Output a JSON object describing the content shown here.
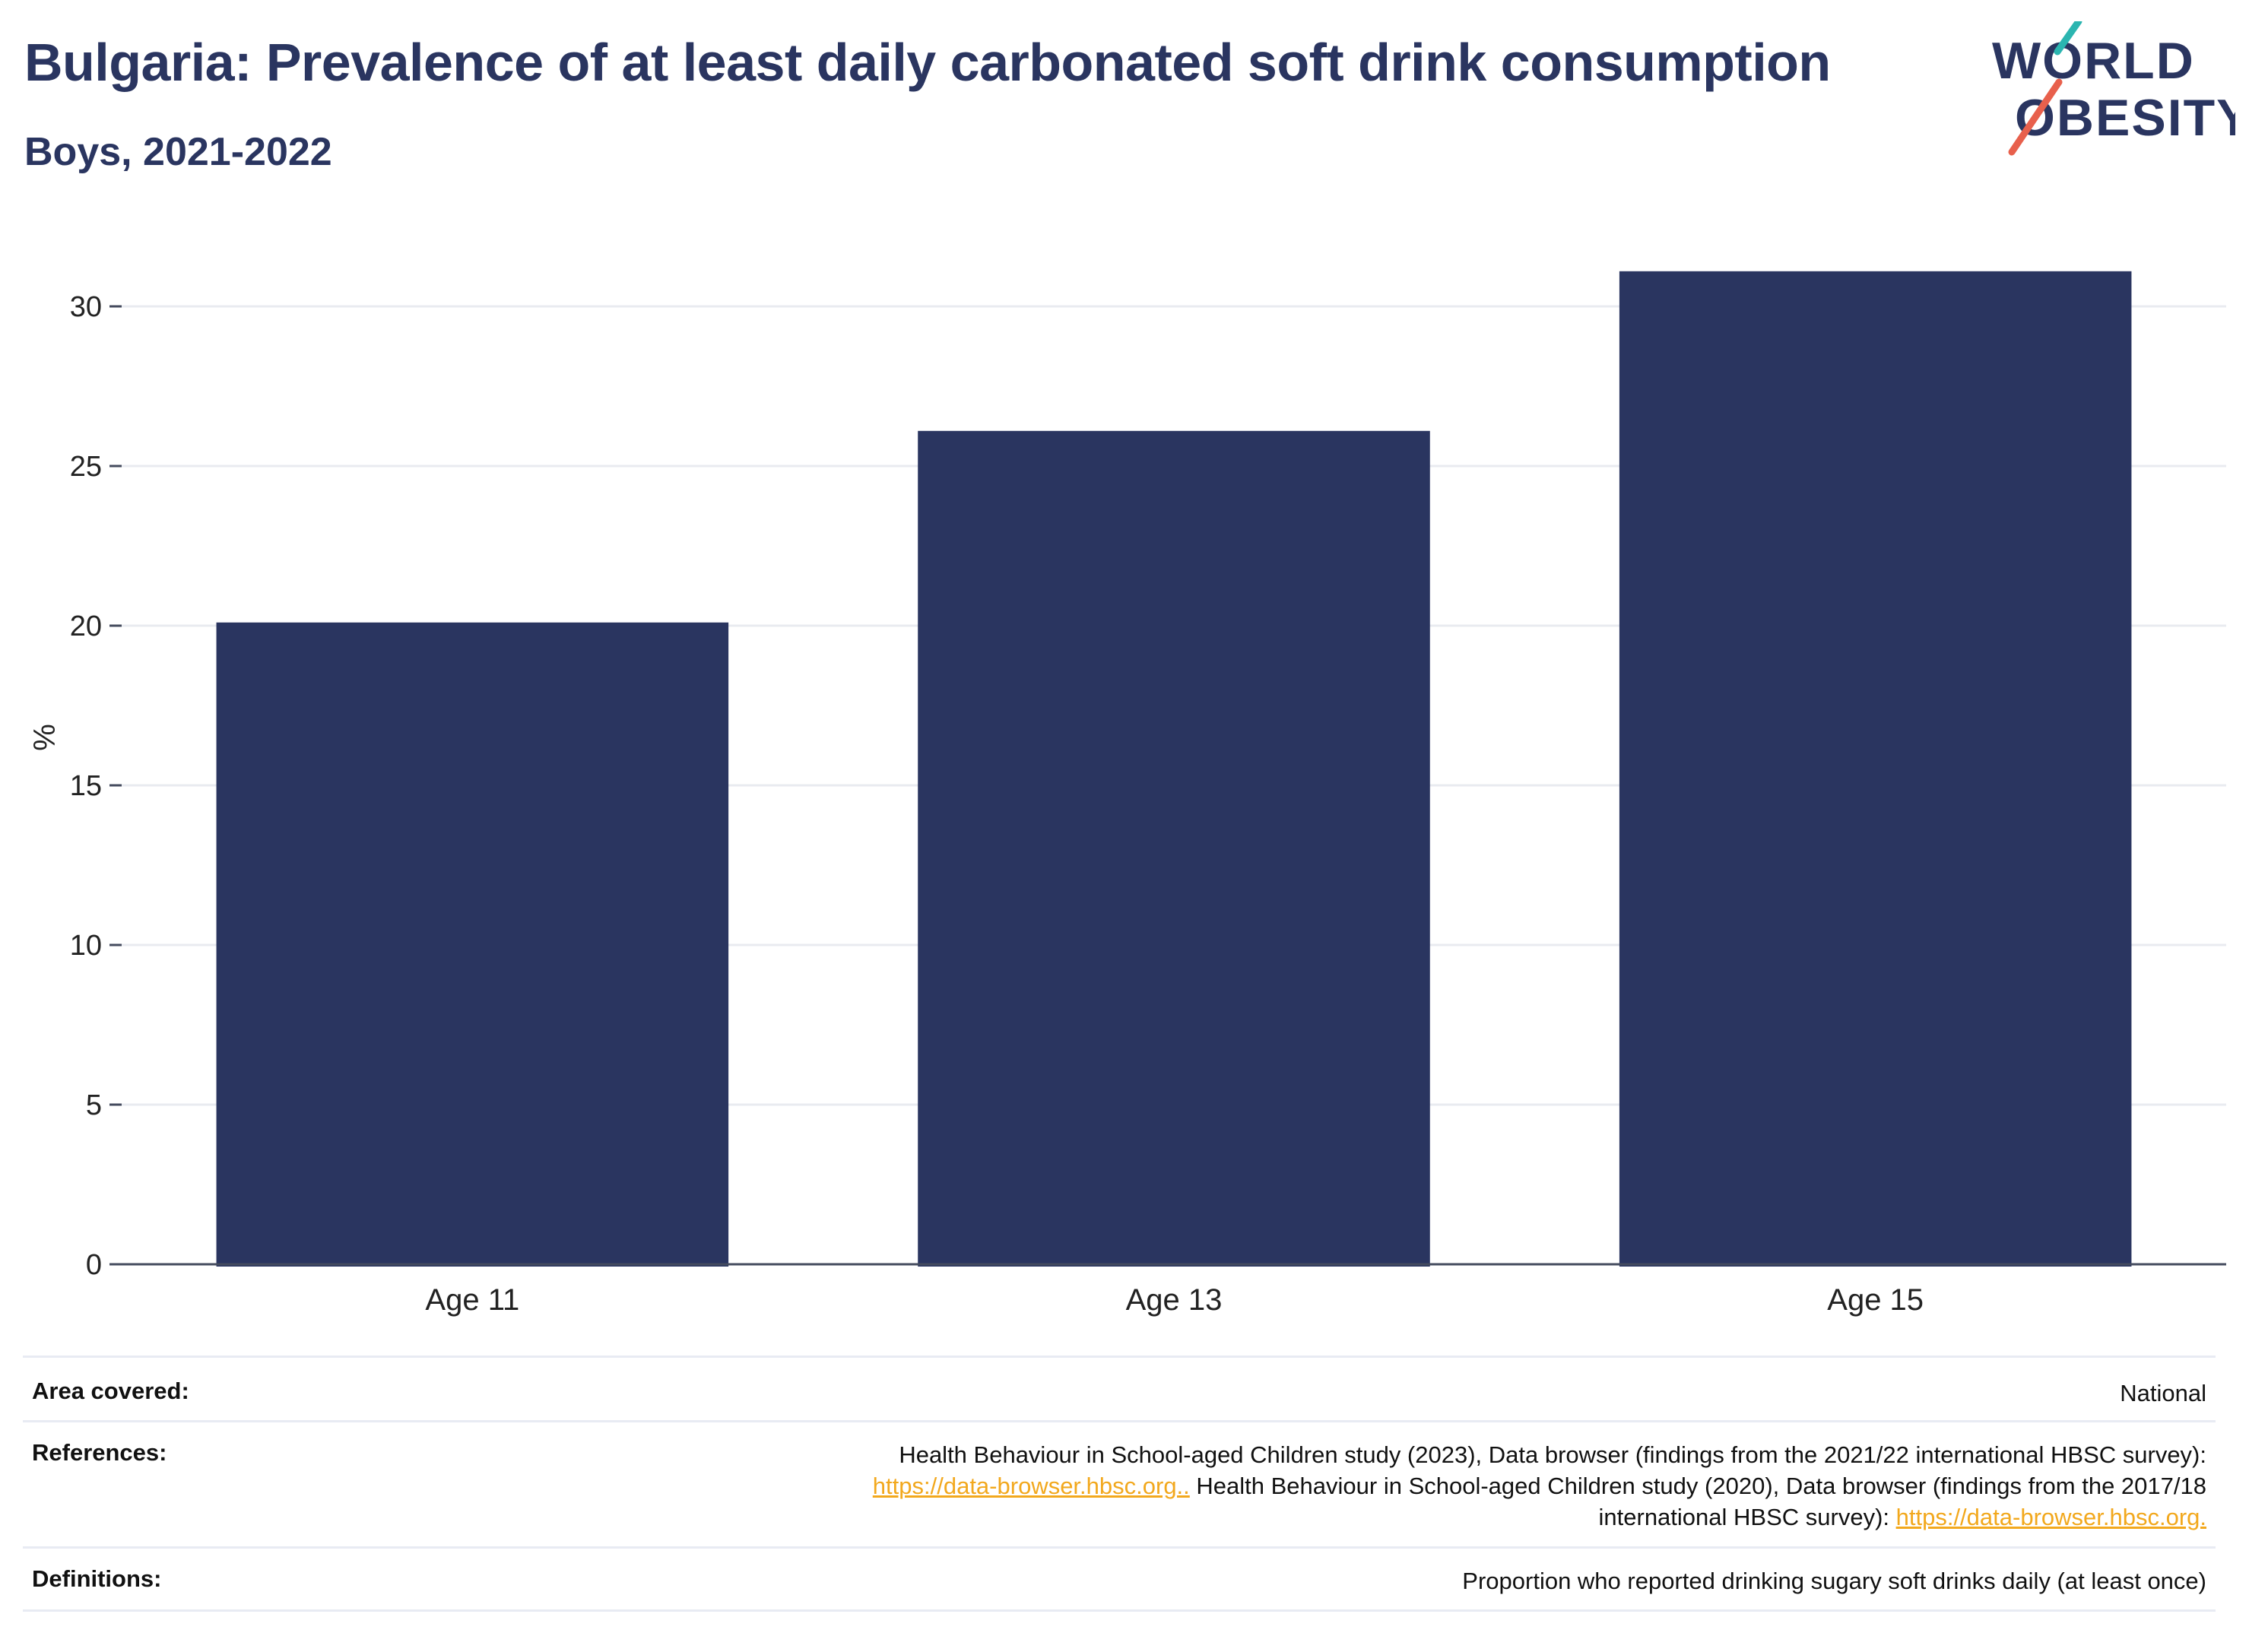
{
  "header": {
    "title": "Bulgaria: Prevalence of at least daily carbonated soft drink consumption",
    "subtitle": "Boys, 2021-2022"
  },
  "logo": {
    "line1": "WORLD",
    "line2": "OBESITY",
    "colors": {
      "text": "#2a3560",
      "slash_top": "#2bb5b0",
      "slash_bottom": "#e8604c"
    }
  },
  "chart_data": {
    "type": "bar",
    "categories": [
      "Age 11",
      "Age 13",
      "Age 15"
    ],
    "values": [
      20.1,
      26.1,
      31.1
    ],
    "ylabel": "%",
    "ylim": [
      0,
      31.5
    ],
    "yticks": [
      0,
      5,
      10,
      15,
      20,
      25,
      30
    ],
    "grid": true,
    "bar_color": "#2a3560"
  },
  "info": {
    "area": {
      "label": "Area covered:",
      "value": "National"
    },
    "references": {
      "label": "References:",
      "text1": "Health Behaviour in School-aged Children study (2023), Data browser (findings from the 2021/22 international HBSC survey):",
      "link1": "https://data-browser.hbsc.org..",
      "text2": " Health Behaviour in School-aged Children study (2020), Data browser (findings from the 2017/18",
      "text3": "international HBSC survey): ",
      "link2": "https://data-browser.hbsc.org."
    },
    "definitions": {
      "label": "Definitions:",
      "value": "Proportion who reported drinking sugary soft drinks daily (at least once)"
    }
  }
}
